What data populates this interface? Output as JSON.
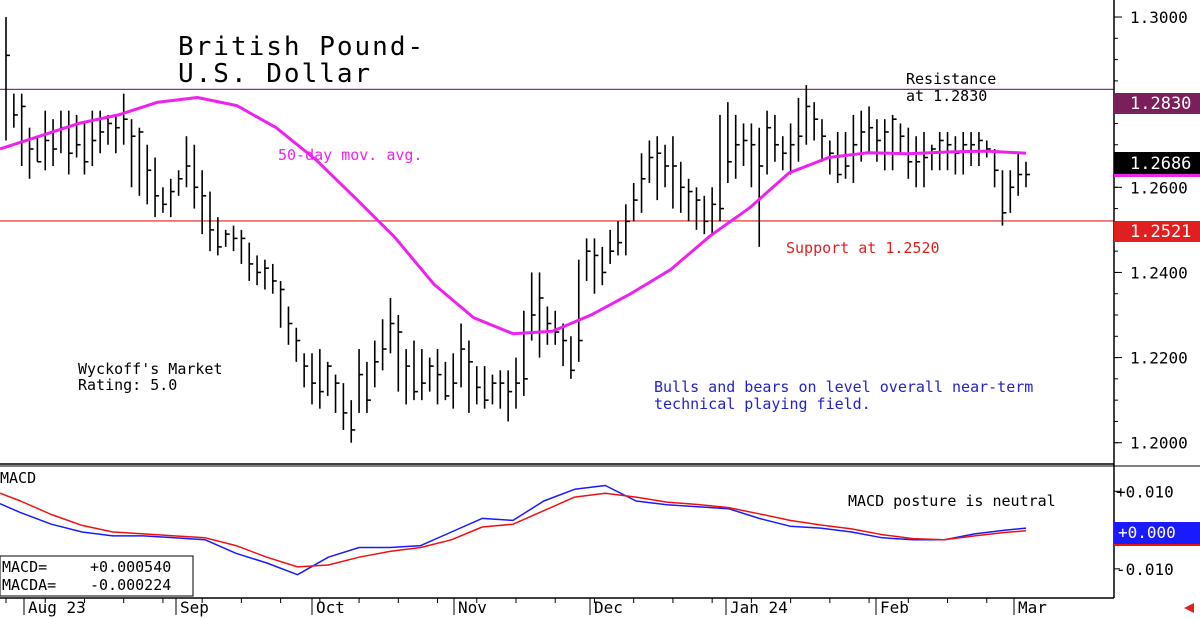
{
  "chart_data": [
    {
      "type": "ohlc",
      "title_line1": "British Pound-",
      "title_line2": "U.S. Dollar",
      "ylim": [
        1.195,
        1.304
      ],
      "y_ticks": [
        "1.3000",
        "1.2800",
        "1.2600",
        "1.2400",
        "1.2200",
        "1.2000"
      ],
      "y_tick_values": [
        1.3,
        1.28,
        1.26,
        1.24,
        1.22,
        1.2
      ],
      "x_tick_labels": [
        "Aug 23",
        "Sep",
        "Oct",
        "Nov",
        "Dec",
        "Jan 24",
        "Feb",
        "Mar"
      ],
      "bars_count": 131,
      "price_closes": [
        1.291,
        1.277,
        1.279,
        1.269,
        1.266,
        1.271,
        1.269,
        1.274,
        1.268,
        1.27,
        1.266,
        1.271,
        1.273,
        1.275,
        1.274,
        1.276,
        1.272,
        1.273,
        1.264,
        1.258,
        1.256,
        1.259,
        1.262,
        1.265,
        1.26,
        1.258,
        1.25,
        1.246,
        1.249,
        1.248,
        1.248,
        1.242,
        1.24,
        1.241,
        1.238,
        1.236,
        1.228,
        1.224,
        1.218,
        1.214,
        1.212,
        1.218,
        1.214,
        1.207,
        1.203,
        1.216,
        1.21,
        1.219,
        1.222,
        1.228,
        1.226,
        1.218,
        1.212,
        1.214,
        1.218,
        1.216,
        1.211,
        1.214,
        1.222,
        1.219,
        1.213,
        1.21,
        1.214,
        1.214,
        1.212,
        1.214,
        1.215,
        1.23,
        1.234,
        1.228,
        1.226,
        1.224,
        1.217,
        1.224,
        1.245,
        1.244,
        1.24,
        1.245,
        1.247,
        1.252,
        1.257,
        1.262,
        1.267,
        1.268,
        1.265,
        1.265,
        1.26,
        1.259,
        1.257,
        1.252,
        1.256,
        1.255,
        1.266,
        1.27,
        1.271,
        1.27,
        1.265,
        1.274,
        1.27,
        1.268,
        1.27,
        1.272,
        1.279,
        1.276,
        1.272,
        1.268,
        1.263,
        1.265,
        1.27,
        1.273,
        1.274,
        1.271,
        1.273,
        1.276,
        1.272,
        1.266,
        1.266,
        1.267,
        1.269,
        1.271,
        1.27,
        1.268,
        1.27,
        1.27,
        1.271,
        1.269,
        1.264,
        1.254,
        1.26,
        1.263,
        1.263
      ],
      "price_highs": [
        1.3,
        1.282,
        1.282,
        1.274,
        1.272,
        1.278,
        1.276,
        1.278,
        1.278,
        1.277,
        1.275,
        1.278,
        1.278,
        1.277,
        1.277,
        1.282,
        1.276,
        1.274,
        1.27,
        1.267,
        1.26,
        1.262,
        1.264,
        1.272,
        1.27,
        1.264,
        1.259,
        1.253,
        1.25,
        1.251,
        1.25,
        1.247,
        1.244,
        1.243,
        1.242,
        1.238,
        1.232,
        1.227,
        1.221,
        1.221,
        1.222,
        1.219,
        1.216,
        1.214,
        1.21,
        1.222,
        1.219,
        1.224,
        1.229,
        1.234,
        1.23,
        1.222,
        1.224,
        1.222,
        1.22,
        1.222,
        1.219,
        1.221,
        1.228,
        1.224,
        1.218,
        1.218,
        1.216,
        1.217,
        1.217,
        1.22,
        1.231,
        1.24,
        1.24,
        1.232,
        1.231,
        1.228,
        1.225,
        1.243,
        1.248,
        1.248,
        1.246,
        1.25,
        1.252,
        1.256,
        1.261,
        1.268,
        1.271,
        1.272,
        1.27,
        1.272,
        1.266,
        1.262,
        1.26,
        1.258,
        1.26,
        1.277,
        1.28,
        1.277,
        1.275,
        1.275,
        1.274,
        1.278,
        1.277,
        1.272,
        1.275,
        1.281,
        1.284,
        1.28,
        1.276,
        1.271,
        1.273,
        1.273,
        1.277,
        1.278,
        1.279,
        1.276,
        1.276,
        1.277,
        1.275,
        1.274,
        1.272,
        1.273,
        1.27,
        1.273,
        1.273,
        1.272,
        1.273,
        1.273,
        1.273,
        1.271,
        1.269,
        1.264,
        1.264,
        1.268,
        1.266
      ],
      "price_lows": [
        1.271,
        1.274,
        1.265,
        1.262,
        1.266,
        1.264,
        1.265,
        1.268,
        1.263,
        1.267,
        1.263,
        1.265,
        1.268,
        1.27,
        1.268,
        1.27,
        1.26,
        1.258,
        1.256,
        1.253,
        1.254,
        1.253,
        1.258,
        1.26,
        1.255,
        1.249,
        1.245,
        1.244,
        1.246,
        1.245,
        1.242,
        1.238,
        1.237,
        1.236,
        1.235,
        1.227,
        1.223,
        1.219,
        1.213,
        1.209,
        1.208,
        1.211,
        1.207,
        1.203,
        1.2,
        1.207,
        1.207,
        1.213,
        1.217,
        1.221,
        1.212,
        1.209,
        1.21,
        1.21,
        1.212,
        1.209,
        1.21,
        1.208,
        1.213,
        1.207,
        1.209,
        1.208,
        1.209,
        1.208,
        1.205,
        1.208,
        1.211,
        1.224,
        1.22,
        1.223,
        1.223,
        1.218,
        1.215,
        1.219,
        1.238,
        1.235,
        1.237,
        1.242,
        1.244,
        1.244,
        1.252,
        1.254,
        1.261,
        1.257,
        1.26,
        1.255,
        1.254,
        1.252,
        1.25,
        1.249,
        1.249,
        1.252,
        1.261,
        1.262,
        1.265,
        1.26,
        1.246,
        1.263,
        1.266,
        1.264,
        1.263,
        1.266,
        1.27,
        1.271,
        1.266,
        1.263,
        1.261,
        1.262,
        1.261,
        1.266,
        1.268,
        1.266,
        1.264,
        1.264,
        1.268,
        1.262,
        1.26,
        1.26,
        1.264,
        1.264,
        1.264,
        1.263,
        1.263,
        1.265,
        1.265,
        1.267,
        1.26,
        1.251,
        1.254,
        1.258,
        1.26
      ],
      "ma50": [
        1.269,
        1.272,
        1.275,
        1.277,
        1.28,
        1.2811,
        1.2792,
        1.274,
        1.2665,
        1.2575,
        1.2483,
        1.2372,
        1.2294,
        1.2256,
        1.2262,
        1.2301,
        1.2351,
        1.2407,
        1.2486,
        1.2552,
        1.2634,
        1.267,
        1.2681,
        1.2679,
        1.2683,
        1.2685,
        1.268
      ],
      "ma50_x": [
        0,
        0.045,
        0.09,
        0.135,
        0.18,
        0.207,
        0.243,
        0.297,
        0.36,
        0.432,
        0.495,
        0.549,
        0.595,
        0.64,
        0.685,
        0.72,
        0.77,
        0.82,
        0.87,
        0.92,
        0.97,
        0.99,
        1.0,
        1.0,
        1.0,
        1.0,
        1.0
      ],
      "hlines": [
        {
          "value": 1.283,
          "color": "#9b2d7a",
          "label": "1.2830",
          "label_bg": "#7a1f5a"
        },
        {
          "value": 1.2521,
          "color": "#e02020",
          "label": "1.2521",
          "label_bg": "#e02020"
        }
      ],
      "last_price_label": "1.2686",
      "last_price_value": 1.2686,
      "annotations": {
        "resistance_line1": "Resistance",
        "resistance_line2": "at 1.2830",
        "support": "Support at 1.2520",
        "ma_label": "50-day mov. avg.",
        "rating_line1": "Wyckoff's Market",
        "rating_line2": "Rating: 5.0",
        "comment_line1": "Bulls and bears on level overall near-term",
        "comment_line2": "technical playing field."
      },
      "colors": {
        "ma": "#ee22ee",
        "bars": "#000000",
        "resistance": "#9b2d7a",
        "support": "#e02020",
        "comment": "#2222cc",
        "support_text": "#e02020"
      }
    },
    {
      "type": "line",
      "title": "MACD",
      "ylim": [
        -0.017,
        0.016
      ],
      "y_ticks": [
        "+0.010",
        "+0.000",
        "-0.010"
      ],
      "y_tick_values": [
        0.01,
        0.0,
        -0.01
      ],
      "annotation": "MACD posture is neutral",
      "macd_label": "MACD=",
      "macd_value": "+0.000540",
      "macda_label": "MACDA=",
      "macda_value": "-0.000224",
      "last_label": "+0.000",
      "series": [
        {
          "name": "MACD",
          "color": "#1a1aff",
          "x": [
            0,
            0.02,
            0.05,
            0.08,
            0.11,
            0.14,
            0.17,
            0.2,
            0.23,
            0.26,
            0.29,
            0.32,
            0.35,
            0.38,
            0.41,
            0.44,
            0.47,
            0.5,
            0.53,
            0.56,
            0.59,
            0.62,
            0.65,
            0.68,
            0.71,
            0.74,
            0.77,
            0.8,
            0.83,
            0.86,
            0.89,
            0.92,
            0.95,
            0.98,
            1.0
          ],
          "values": [
            0.0068,
            0.0045,
            0.0015,
            -0.0005,
            -0.0015,
            -0.0015,
            -0.002,
            -0.0025,
            -0.006,
            -0.0085,
            -0.0115,
            -0.007,
            -0.0045,
            -0.0045,
            -0.004,
            -0.0005,
            0.003,
            0.0025,
            0.0075,
            0.0105,
            0.0115,
            0.0075,
            0.0065,
            0.006,
            0.0055,
            0.003,
            0.001,
            0.0005,
            -0.0005,
            -0.002,
            -0.0025,
            -0.0025,
            -0.001,
            0.0,
            0.0005
          ]
        },
        {
          "name": "MACDA",
          "color": "#ee1111",
          "x": [
            0,
            0.02,
            0.05,
            0.08,
            0.11,
            0.14,
            0.17,
            0.2,
            0.23,
            0.26,
            0.29,
            0.32,
            0.35,
            0.38,
            0.41,
            0.44,
            0.47,
            0.5,
            0.53,
            0.56,
            0.59,
            0.62,
            0.65,
            0.68,
            0.71,
            0.74,
            0.77,
            0.8,
            0.83,
            0.86,
            0.89,
            0.92,
            0.95,
            0.98,
            1.0
          ],
          "values": [
            0.0095,
            0.0075,
            0.004,
            0.0012,
            -0.0005,
            -0.001,
            -0.0015,
            -0.002,
            -0.004,
            -0.007,
            -0.0095,
            -0.009,
            -0.007,
            -0.0055,
            -0.0045,
            -0.0025,
            0.0008,
            0.0015,
            0.005,
            0.0085,
            0.0095,
            0.0085,
            0.0072,
            0.0066,
            0.0058,
            0.0042,
            0.0025,
            0.0013,
            0.0003,
            -0.0012,
            -0.0022,
            -0.0025,
            -0.0015,
            -0.0006,
            -0.0002
          ]
        }
      ]
    }
  ]
}
